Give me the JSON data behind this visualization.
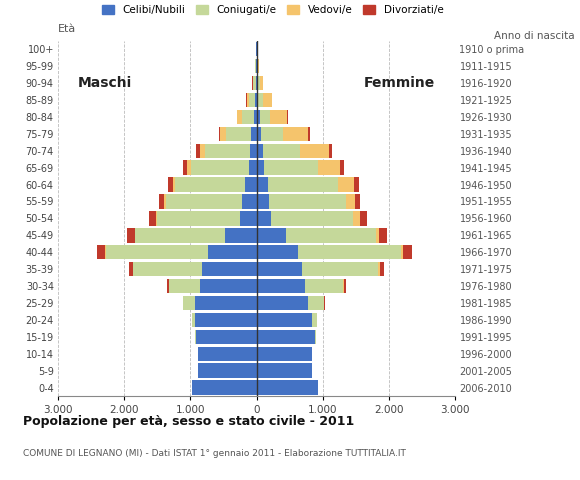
{
  "age_groups_bottom_to_top": [
    "0-4",
    "5-9",
    "10-14",
    "15-19",
    "20-24",
    "25-29",
    "30-34",
    "35-39",
    "40-44",
    "45-49",
    "50-54",
    "55-59",
    "60-64",
    "65-69",
    "70-74",
    "75-79",
    "80-84",
    "85-89",
    "90-94",
    "95-99",
    "100+"
  ],
  "birth_years_bottom_to_top": [
    "2006-2010",
    "2001-2005",
    "1996-2000",
    "1991-1995",
    "1986-1990",
    "1981-1985",
    "1976-1980",
    "1971-1975",
    "1966-1970",
    "1961-1965",
    "1956-1960",
    "1951-1955",
    "1946-1950",
    "1941-1945",
    "1936-1940",
    "1931-1935",
    "1926-1930",
    "1921-1925",
    "1916-1920",
    "1911-1915",
    "1910 o prima"
  ],
  "males_celibe": [
    980,
    880,
    880,
    920,
    930,
    930,
    860,
    820,
    730,
    480,
    250,
    220,
    180,
    120,
    100,
    80,
    40,
    25,
    15,
    8,
    5
  ],
  "males_coniugato": [
    0,
    1,
    3,
    8,
    45,
    180,
    460,
    1050,
    1550,
    1350,
    1250,
    1150,
    1050,
    870,
    680,
    380,
    180,
    90,
    35,
    12,
    5
  ],
  "males_vedovo": [
    0,
    0,
    0,
    0,
    0,
    1,
    2,
    4,
    4,
    8,
    18,
    28,
    38,
    55,
    75,
    95,
    75,
    38,
    12,
    4,
    2
  ],
  "males_divorziato": [
    0,
    0,
    0,
    1,
    4,
    8,
    25,
    55,
    125,
    115,
    110,
    75,
    75,
    65,
    55,
    18,
    8,
    4,
    2,
    0,
    0
  ],
  "females_nubile": [
    930,
    830,
    830,
    880,
    830,
    780,
    730,
    680,
    630,
    440,
    210,
    185,
    165,
    110,
    90,
    70,
    45,
    25,
    20,
    12,
    4
  ],
  "females_coniugata": [
    0,
    1,
    4,
    18,
    75,
    240,
    580,
    1160,
    1550,
    1360,
    1250,
    1160,
    1060,
    820,
    570,
    330,
    160,
    70,
    25,
    8,
    3
  ],
  "females_vedova": [
    0,
    0,
    0,
    0,
    1,
    4,
    8,
    18,
    25,
    45,
    95,
    140,
    240,
    330,
    430,
    380,
    260,
    140,
    55,
    18,
    4
  ],
  "females_divorziata": [
    0,
    0,
    0,
    1,
    4,
    8,
    28,
    65,
    140,
    125,
    115,
    75,
    85,
    65,
    55,
    28,
    12,
    4,
    1,
    0,
    0
  ],
  "color_celibe": "#4472C4",
  "color_coniugato": "#C5D89A",
  "color_vedovo": "#F5C46C",
  "color_divorziato": "#C0392B",
  "title": "Popolazione per età, sesso e stato civile - 2011",
  "subtitle": "COMUNE DI LEGNANO (MI) - Dati ISTAT 1° gennaio 2011 - Elaborazione TUTTITALIA.IT",
  "label_eta": "Età",
  "label_anno": "Anno di nascita",
  "label_maschi": "Maschi",
  "label_femmine": "Femmine",
  "legend_celibe": "Celibi/Nubili",
  "legend_coniugato": "Coniugati/e",
  "legend_vedovo": "Vedovi/e",
  "legend_divorziato": "Divorziati/e",
  "xlim": 3000,
  "background_color": "#ffffff",
  "grid_color": "#bbbbbb"
}
